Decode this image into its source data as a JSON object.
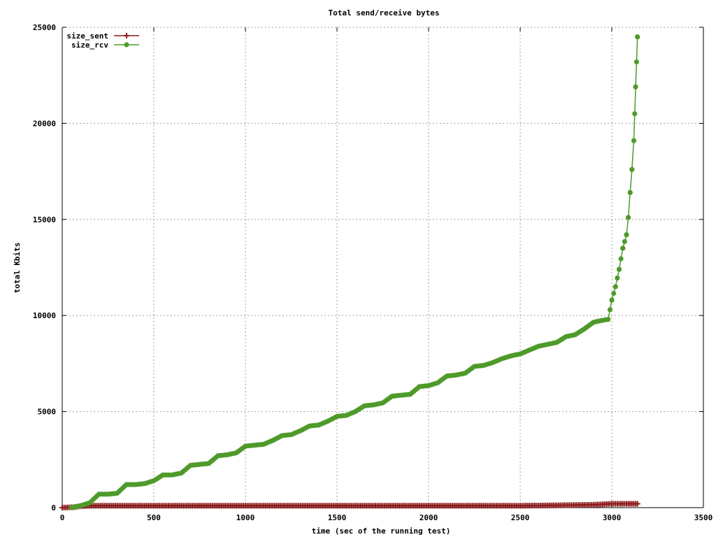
{
  "chart_data": {
    "type": "line",
    "title": "Total send/receive bytes",
    "xlabel": "time (sec of the running test)",
    "ylabel": "total Kbits",
    "xlim": [
      0,
      3500
    ],
    "ylim": [
      0,
      25000
    ],
    "xticks": [
      0,
      500,
      1000,
      1500,
      2000,
      2500,
      3000,
      3500
    ],
    "yticks": [
      0,
      5000,
      10000,
      15000,
      20000,
      25000
    ],
    "grid": true,
    "legend_position": "top-left",
    "series": [
      {
        "name": "size_sent",
        "color": "#8b1a1a",
        "marker": "plus",
        "points": [
          [
            0,
            0
          ],
          [
            60,
            20
          ],
          [
            100,
            80
          ],
          [
            150,
            100
          ],
          [
            500,
            100
          ],
          [
            1000,
            100
          ],
          [
            1500,
            100
          ],
          [
            2000,
            100
          ],
          [
            2500,
            100
          ],
          [
            2700,
            120
          ],
          [
            2900,
            150
          ],
          [
            3000,
            200
          ],
          [
            3050,
            200
          ],
          [
            3100,
            200
          ],
          [
            3140,
            200
          ]
        ]
      },
      {
        "name": "size_rcv",
        "color": "#4e9a2a",
        "marker": "asterisk",
        "points": [
          [
            50,
            0
          ],
          [
            100,
            100
          ],
          [
            150,
            250
          ],
          [
            200,
            700
          ],
          [
            250,
            700
          ],
          [
            300,
            750
          ],
          [
            350,
            1200
          ],
          [
            400,
            1200
          ],
          [
            450,
            1250
          ],
          [
            500,
            1400
          ],
          [
            550,
            1700
          ],
          [
            600,
            1700
          ],
          [
            650,
            1800
          ],
          [
            700,
            2200
          ],
          [
            750,
            2250
          ],
          [
            800,
            2300
          ],
          [
            850,
            2700
          ],
          [
            900,
            2750
          ],
          [
            950,
            2850
          ],
          [
            1000,
            3200
          ],
          [
            1050,
            3250
          ],
          [
            1100,
            3300
          ],
          [
            1150,
            3500
          ],
          [
            1200,
            3750
          ],
          [
            1250,
            3800
          ],
          [
            1300,
            4000
          ],
          [
            1350,
            4250
          ],
          [
            1400,
            4300
          ],
          [
            1450,
            4500
          ],
          [
            1500,
            4750
          ],
          [
            1550,
            4800
          ],
          [
            1600,
            5000
          ],
          [
            1650,
            5300
          ],
          [
            1700,
            5350
          ],
          [
            1750,
            5450
          ],
          [
            1800,
            5800
          ],
          [
            1850,
            5850
          ],
          [
            1900,
            5900
          ],
          [
            1950,
            6300
          ],
          [
            2000,
            6350
          ],
          [
            2050,
            6500
          ],
          [
            2100,
            6850
          ],
          [
            2150,
            6900
          ],
          [
            2200,
            7000
          ],
          [
            2250,
            7350
          ],
          [
            2300,
            7400
          ],
          [
            2350,
            7550
          ],
          [
            2400,
            7750
          ],
          [
            2450,
            7900
          ],
          [
            2500,
            8000
          ],
          [
            2550,
            8200
          ],
          [
            2600,
            8400
          ],
          [
            2650,
            8500
          ],
          [
            2700,
            8600
          ],
          [
            2750,
            8900
          ],
          [
            2800,
            9000
          ],
          [
            2850,
            9300
          ],
          [
            2900,
            9650
          ],
          [
            2950,
            9750
          ],
          [
            2980,
            9800
          ],
          [
            3000,
            10800
          ],
          [
            3020,
            11500
          ],
          [
            3040,
            12400
          ],
          [
            3060,
            13500
          ],
          [
            3080,
            14200
          ],
          [
            3090,
            15100
          ],
          [
            3100,
            16400
          ],
          [
            3110,
            17600
          ],
          [
            3120,
            19100
          ],
          [
            3125,
            20500
          ],
          [
            3130,
            21900
          ],
          [
            3135,
            23200
          ],
          [
            3140,
            24500
          ]
        ]
      }
    ]
  }
}
